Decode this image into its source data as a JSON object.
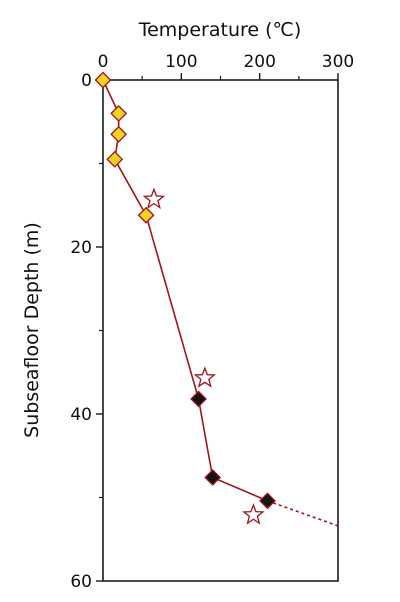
{
  "chart_data": {
    "type": "scatter",
    "xlabel": "Temperature (℃)",
    "ylabel": "Subseafloor Depth  (m)",
    "x_axis_position": "top",
    "y_axis_inverted": true,
    "xlim": [
      0,
      300
    ],
    "ylim": [
      0,
      60
    ],
    "x_ticks": [
      "0",
      "100",
      "200",
      "300"
    ],
    "y_ticks": [
      "0",
      "20",
      "40",
      "60"
    ],
    "grid": false,
    "colors": {
      "line": "#a0141b",
      "diamond_yellow_fill": "#f2d322",
      "diamond_black_fill": "#141414",
      "star_stroke": "#a0141b"
    },
    "series": [
      {
        "marker": "diamond-yellow",
        "points": [
          {
            "x": 0,
            "y": 0
          },
          {
            "x": 20,
            "y": 4
          },
          {
            "x": 20,
            "y": 6.5
          },
          {
            "x": 15,
            "y": 9.5
          },
          {
            "x": 55,
            "y": 16.2
          }
        ]
      },
      {
        "marker": "diamond-black",
        "points": [
          {
            "x": 122,
            "y": 38.2
          },
          {
            "x": 140,
            "y": 47.6
          },
          {
            "x": 210,
            "y": 50.4
          }
        ]
      },
      {
        "marker": "star-open",
        "points": [
          {
            "x": 65,
            "y": 14.3
          },
          {
            "x": 130,
            "y": 35.7
          },
          {
            "x": 192,
            "y": 52.1
          }
        ]
      }
    ],
    "profile_line": {
      "solid": [
        [
          0,
          0
        ],
        [
          20,
          4
        ],
        [
          20,
          6.5
        ],
        [
          15,
          9.5
        ],
        [
          55,
          16.2
        ],
        [
          122,
          38.2
        ],
        [
          140,
          47.6
        ],
        [
          210,
          50.4
        ]
      ],
      "dashed": [
        [
          210,
          50.4
        ],
        [
          300,
          53.4
        ]
      ]
    }
  }
}
